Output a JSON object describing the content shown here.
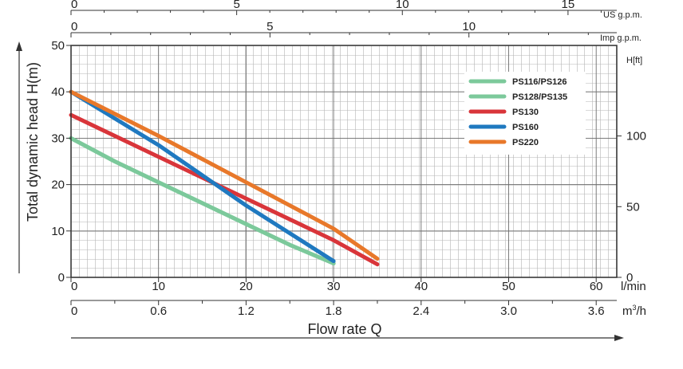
{
  "chart_data": {
    "type": "line",
    "ylabel": "Total dynamic head H(m)",
    "xlabel": "Flow rate Q",
    "x_unit_lmin": "l/min",
    "x_unit_m3h_base": "m",
    "x_unit_m3h_sup": "3",
    "x_unit_m3h_tail": "/h",
    "us_unit": "US g.p.m.",
    "imp_unit": "Imp g.p.m.",
    "ft_unit": "H[ft]",
    "xlim": [
      0,
      62
    ],
    "ylim": [
      0,
      50
    ],
    "y_ticks": [
      0,
      10,
      20,
      30,
      40,
      50
    ],
    "x_ticks_lmin": [
      0,
      10,
      20,
      30,
      40,
      50,
      60
    ],
    "x_ticks_m3h": [
      "0",
      "0.6",
      "1.2",
      "1.8",
      "2.4",
      "3.0",
      "3.6"
    ],
    "us_ticks": [
      0,
      5,
      10,
      15
    ],
    "imp_ticks": [
      0,
      5,
      10
    ],
    "ft_ticks": [
      0,
      50,
      100
    ],
    "grid": true,
    "legend_position": "top-right",
    "series": [
      {
        "name": "PS116/PS126",
        "color": "#7cc99b",
        "x": [
          0,
          5,
          10,
          15,
          20,
          25,
          30
        ],
        "y": [
          30,
          25,
          20.5,
          16,
          11.5,
          7,
          3
        ]
      },
      {
        "name": "PS128/PS135",
        "color": "#7cc99b",
        "x": [
          0,
          5,
          10,
          15,
          20,
          25,
          30
        ],
        "y": [
          30,
          25,
          20.5,
          16,
          11.5,
          7,
          3
        ]
      },
      {
        "name": "PS130",
        "color": "#d9353a",
        "x": [
          0,
          10,
          20,
          30,
          35
        ],
        "y": [
          35,
          26,
          17,
          8,
          2.8
        ]
      },
      {
        "name": "PS160",
        "color": "#1f79c0",
        "x": [
          0,
          10,
          20,
          30
        ],
        "y": [
          40,
          28.5,
          15.5,
          3.5
        ]
      },
      {
        "name": "PS220",
        "color": "#e8782a",
        "x": [
          0,
          10,
          20,
          30,
          35
        ],
        "y": [
          40,
          30.5,
          20.5,
          10.5,
          4
        ]
      }
    ]
  }
}
